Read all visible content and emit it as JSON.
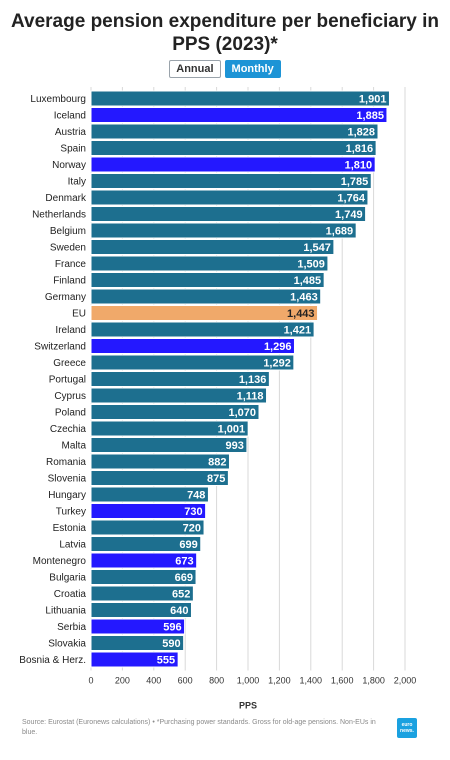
{
  "title": "Average pension expenditure per beneficiary in PPS (2023)*",
  "toggle": {
    "annual_label": "Annual",
    "monthly_label": "Monthly",
    "selected": "Monthly"
  },
  "source": "Source: Eurostat (Euronews calculations) • *Purchasing power standards. Gross for old-age pensions. Non-EUs in blue.",
  "logo": {
    "icon": "euronews-logo",
    "text": "euro news."
  },
  "colors": {
    "eu_member": "#1d6f8f",
    "non_eu": "#2418ff",
    "eu_average": "#f0a96a",
    "grid": "#d9d9d9",
    "border": "#ffffff"
  },
  "chart_data": {
    "type": "bar",
    "orientation": "horizontal",
    "xlabel": "PPS",
    "xlim": [
      0,
      2000
    ],
    "xticks": [
      "0",
      "200",
      "400",
      "600",
      "800",
      "1,000",
      "1,200",
      "1,400",
      "1,600",
      "1,800",
      "2,000"
    ],
    "grid": true,
    "categories": [
      "Luxembourg",
      "Iceland",
      "Austria",
      "Spain",
      "Norway",
      "Italy",
      "Denmark",
      "Netherlands",
      "Belgium",
      "Sweden",
      "France",
      "Finland",
      "Germany",
      "EU",
      "Ireland",
      "Switzerland",
      "Greece",
      "Portugal",
      "Cyprus",
      "Poland",
      "Czechia",
      "Malta",
      "Romania",
      "Slovenia",
      "Hungary",
      "Turkey",
      "Estonia",
      "Latvia",
      "Montenegro",
      "Bulgaria",
      "Croatia",
      "Lithuania",
      "Serbia",
      "Slovakia",
      "Bosnia & Herz."
    ],
    "values": [
      1901,
      1885,
      1828,
      1816,
      1810,
      1785,
      1764,
      1749,
      1689,
      1547,
      1509,
      1485,
      1463,
      1443,
      1421,
      1296,
      1292,
      1136,
      1118,
      1070,
      1001,
      993,
      882,
      875,
      748,
      730,
      720,
      699,
      673,
      669,
      652,
      640,
      596,
      590,
      555
    ],
    "value_labels": [
      "1,901",
      "1,885",
      "1,828",
      "1,816",
      "1,810",
      "1,785",
      "1,764",
      "1,749",
      "1,689",
      "1,547",
      "1,509",
      "1,485",
      "1,463",
      "1,443",
      "1,421",
      "1,296",
      "1,292",
      "1,136",
      "1,118",
      "1,070",
      "1,001",
      "993",
      "882",
      "875",
      "748",
      "730",
      "720",
      "699",
      "673",
      "669",
      "652",
      "640",
      "596",
      "590",
      "555"
    ],
    "groups": [
      "eu",
      "non_eu",
      "eu",
      "eu",
      "non_eu",
      "eu",
      "eu",
      "eu",
      "eu",
      "eu",
      "eu",
      "eu",
      "eu",
      "average",
      "eu",
      "non_eu",
      "eu",
      "eu",
      "eu",
      "eu",
      "eu",
      "eu",
      "eu",
      "eu",
      "eu",
      "non_eu",
      "eu",
      "eu",
      "non_eu",
      "eu",
      "eu",
      "eu",
      "non_eu",
      "eu",
      "non_eu"
    ]
  }
}
